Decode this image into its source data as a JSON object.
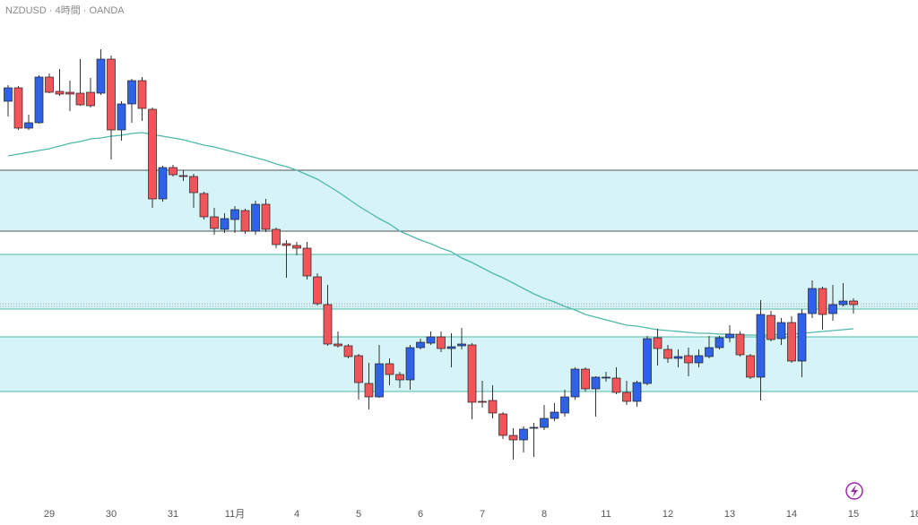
{
  "chart_data": {
    "type": "candlestick",
    "title": "NZDUSD · 4時間 · OANDA",
    "ylim": [
      0.58236,
      0.605
    ],
    "up_color": "#2f62e8",
    "down_color": "#f0555a",
    "zone_color": "#d6f4f7",
    "ohlc": [
      [
        0.60048,
        0.6012,
        0.5998,
        0.60108
      ],
      [
        0.60108,
        0.60116,
        0.5992,
        0.59928
      ],
      [
        0.59928,
        0.59988,
        0.5992,
        0.59952
      ],
      [
        0.59952,
        0.60164,
        0.59948,
        0.60156
      ],
      [
        0.60156,
        0.60172,
        0.60084,
        0.60088
      ],
      [
        0.60092,
        0.60192,
        0.60072,
        0.6008
      ],
      [
        0.60088,
        0.6014,
        0.60004,
        0.6008
      ],
      [
        0.60084,
        0.60236,
        0.60028,
        0.60032
      ],
      [
        0.60088,
        0.60152,
        0.6002,
        0.60028
      ],
      [
        0.60084,
        0.6028,
        0.60076,
        0.60236
      ],
      [
        0.60236,
        0.60252,
        0.59788,
        0.5992
      ],
      [
        0.5992,
        0.60048,
        0.59872,
        0.60036
      ],
      [
        0.60036,
        0.60148,
        0.59952,
        0.6014
      ],
      [
        0.6014,
        0.60156,
        0.5996,
        0.60016
      ],
      [
        0.60012,
        0.6002,
        0.59572,
        0.59612
      ],
      [
        0.59612,
        0.5976,
        0.596,
        0.59752
      ],
      [
        0.59752,
        0.59764,
        0.59712,
        0.5972
      ],
      [
        0.59716,
        0.5974,
        0.59692,
        0.59712
      ],
      [
        0.59712,
        0.59724,
        0.59572,
        0.5964
      ],
      [
        0.59636,
        0.59644,
        0.5952,
        0.59532
      ],
      [
        0.59532,
        0.59572,
        0.59452,
        0.5948
      ],
      [
        0.59476,
        0.59548,
        0.5946,
        0.59524
      ],
      [
        0.5952,
        0.5958,
        0.5946,
        0.59564
      ],
      [
        0.5956,
        0.59568,
        0.59456,
        0.59468
      ],
      [
        0.59468,
        0.59604,
        0.59452,
        0.59588
      ],
      [
        0.59588,
        0.59612,
        0.59464,
        0.59476
      ],
      [
        0.59476,
        0.59484,
        0.59392,
        0.59408
      ],
      [
        0.59412,
        0.59428,
        0.5926,
        0.59404
      ],
      [
        0.59404,
        0.5942,
        0.5936,
        0.59392
      ],
      [
        0.59392,
        0.5942,
        0.59252,
        0.59268
      ],
      [
        0.59264,
        0.5928,
        0.59136,
        0.59144
      ],
      [
        0.5914,
        0.59228,
        0.58956,
        0.58964
      ],
      [
        0.58964,
        0.5902,
        0.58948,
        0.58956
      ],
      [
        0.58956,
        0.58964,
        0.589,
        0.58908
      ],
      [
        0.58912,
        0.5892,
        0.58716,
        0.58792
      ],
      [
        0.58788,
        0.5888,
        0.58672,
        0.58728
      ],
      [
        0.58728,
        0.5896,
        0.58724,
        0.58876
      ],
      [
        0.58876,
        0.589,
        0.5878,
        0.58828
      ],
      [
        0.58828,
        0.5884,
        0.58768,
        0.58804
      ],
      [
        0.58804,
        0.5896,
        0.5876,
        0.58948
      ],
      [
        0.58948,
        0.58988,
        0.5894,
        0.58972
      ],
      [
        0.58968,
        0.5902,
        0.5896,
        0.58996
      ],
      [
        0.58996,
        0.5902,
        0.58928,
        0.58944
      ],
      [
        0.58944,
        0.59012,
        0.5886,
        0.58952
      ],
      [
        0.58956,
        0.59036,
        0.5894,
        0.58964
      ],
      [
        0.5896,
        0.58968,
        0.58628,
        0.58704
      ],
      [
        0.58708,
        0.588,
        0.5868,
        0.58704
      ],
      [
        0.58712,
        0.5878,
        0.58632,
        0.58656
      ],
      [
        0.58652,
        0.5866,
        0.5854,
        0.58556
      ],
      [
        0.58556,
        0.58588,
        0.58448,
        0.58536
      ],
      [
        0.58536,
        0.58596,
        0.5848,
        0.58584
      ],
      [
        0.58588,
        0.58612,
        0.5846,
        0.58592
      ],
      [
        0.58592,
        0.58692,
        0.5858,
        0.58632
      ],
      [
        0.58632,
        0.587,
        0.5862,
        0.5866
      ],
      [
        0.58656,
        0.5876,
        0.5864,
        0.58728
      ],
      [
        0.58728,
        0.5886,
        0.58716,
        0.58852
      ],
      [
        0.58852,
        0.5886,
        0.58752,
        0.58764
      ],
      [
        0.58764,
        0.5882,
        0.5864,
        0.58816
      ],
      [
        0.58812,
        0.5884,
        0.58796,
        0.58816
      ],
      [
        0.58812,
        0.5886,
        0.5874,
        0.58748
      ],
      [
        0.58748,
        0.588,
        0.58692,
        0.58708
      ],
      [
        0.58708,
        0.588,
        0.58684,
        0.58792
      ],
      [
        0.58788,
        0.59,
        0.5878,
        0.58988
      ],
      [
        0.58992,
        0.59032,
        0.58868,
        0.58944
      ],
      [
        0.5894,
        0.5896,
        0.5888,
        0.589
      ],
      [
        0.589,
        0.5894,
        0.5886,
        0.58908
      ],
      [
        0.58912,
        0.58948,
        0.5882,
        0.5888
      ],
      [
        0.5888,
        0.5894,
        0.5886,
        0.58912
      ],
      [
        0.58908,
        0.59,
        0.589,
        0.58948
      ],
      [
        0.58948,
        0.59,
        0.5894,
        0.58992
      ],
      [
        0.58992,
        0.59048,
        0.58972,
        0.59008
      ],
      [
        0.59008,
        0.5902,
        0.58908,
        0.58916
      ],
      [
        0.58912,
        0.5892,
        0.58808,
        0.58816
      ],
      [
        0.58816,
        0.5916,
        0.58712,
        0.59096
      ],
      [
        0.59092,
        0.59112,
        0.58976,
        0.58984
      ],
      [
        0.58988,
        0.5908,
        0.5896,
        0.5906
      ],
      [
        0.5906,
        0.59088,
        0.5888,
        0.58888
      ],
      [
        0.58888,
        0.5912,
        0.58816,
        0.591
      ],
      [
        0.591,
        0.59248,
        0.5908,
        0.59212
      ],
      [
        0.59212,
        0.5922,
        0.59028,
        0.59096
      ],
      [
        0.591,
        0.59228,
        0.59068,
        0.5914
      ],
      [
        0.5914,
        0.59236,
        0.59132,
        0.59156
      ],
      [
        0.59156,
        0.59168,
        0.591,
        0.5914
      ]
    ],
    "ma": {
      "color": "#4fb8aa",
      "values": [
        0.59804,
        0.59812,
        0.5982,
        0.59828,
        0.59836,
        0.59848,
        0.5986,
        0.59868,
        0.5988,
        0.59884,
        0.59892,
        0.59896,
        0.59904,
        0.59908,
        0.599,
        0.59892,
        0.59884,
        0.59876,
        0.59864,
        0.59852,
        0.59844,
        0.59832,
        0.5982,
        0.59808,
        0.59796,
        0.59784,
        0.59768,
        0.59756,
        0.5974,
        0.5972,
        0.597,
        0.59672,
        0.59644,
        0.59612,
        0.5958,
        0.59552,
        0.59524,
        0.595,
        0.59468,
        0.59448,
        0.59428,
        0.59412,
        0.59392,
        0.59376,
        0.59348,
        0.59328,
        0.59304,
        0.5928,
        0.5926,
        0.59236,
        0.59212,
        0.59188,
        0.59168,
        0.59152,
        0.59132,
        0.59116,
        0.59096,
        0.59084,
        0.59072,
        0.5906,
        0.59048,
        0.59044,
        0.59036,
        0.59028,
        0.59024,
        0.5902,
        0.59016,
        0.59012,
        0.59012,
        0.59008,
        0.59008,
        0.59004,
        0.59004,
        0.59004,
        0.59004,
        0.59008,
        0.59008,
        0.59012,
        0.59016,
        0.5902,
        0.59024,
        0.59028,
        0.59032
      ]
    },
    "zones": [
      {
        "top": 0.5974,
        "bottom": 0.59468,
        "line_color": "#555555"
      },
      {
        "top": 0.59364,
        "bottom": 0.5912,
        "line_color": "#4fb8aa"
      },
      {
        "top": 0.58996,
        "bottom": 0.58752,
        "line_color": "#4fb8aa"
      }
    ],
    "levels": [
      0.59144,
      0.59132
    ],
    "xticks": [
      {
        "index": 4,
        "label": "29"
      },
      {
        "index": 10,
        "label": "30"
      },
      {
        "index": 16,
        "label": "31"
      },
      {
        "index": 22,
        "label": "11月"
      },
      {
        "index": 28,
        "label": "4"
      },
      {
        "index": 34,
        "label": "5"
      },
      {
        "index": 40,
        "label": "6"
      },
      {
        "index": 46,
        "label": "7"
      },
      {
        "index": 52,
        "label": "8"
      },
      {
        "index": 58,
        "label": "11"
      },
      {
        "index": 64,
        "label": "12"
      },
      {
        "index": 70,
        "label": "13"
      },
      {
        "index": 76,
        "label": "14"
      },
      {
        "index": 82,
        "label": "15"
      },
      {
        "index": 88,
        "label": "18"
      }
    ]
  }
}
